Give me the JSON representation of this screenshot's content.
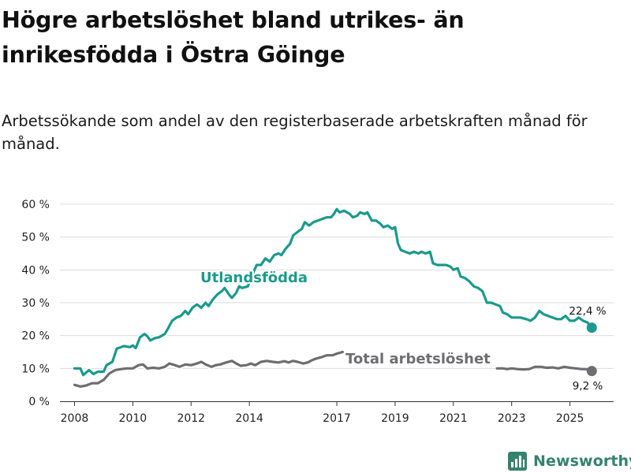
{
  "page": {
    "title": "Högre arbetslöshet bland utrikes- än inrikesfödda i Östra Göinge",
    "subtitle": "Arbetssökande som andel av den registerbaserade arbetskraften månad för månad.",
    "brand": "Newsworthy"
  },
  "colors": {
    "utlandsfodda": "#1a9a8c",
    "total": "#6e6e72",
    "grid": "#dcdcdc",
    "axis": "#333333",
    "brand": "#34826f"
  },
  "chart_data": {
    "type": "line",
    "title": "Högre arbetslöshet bland utrikes- än inrikesfödda i Östra Göinge",
    "subtitle": "Arbetssökande som andel av den registerbaserade arbetskraften månad för månad.",
    "xlabel": "",
    "ylabel": "",
    "xlim": [
      2007.5,
      2026.5
    ],
    "ylim": [
      0,
      60
    ],
    "yticks": [
      0,
      10,
      20,
      30,
      40,
      50,
      60
    ],
    "ytick_labels": [
      "0 %",
      "10 %",
      "20 %",
      "30 %",
      "40 %",
      "50 %",
      "60 %"
    ],
    "xticks": [
      2008,
      2010,
      2012,
      2014,
      2017,
      2019,
      2021,
      2023,
      2025
    ],
    "xtick_labels": [
      "2008",
      "2010",
      "2012",
      "2014",
      "2017",
      "2019",
      "2021",
      "2023",
      "2025"
    ],
    "grid": true,
    "series": [
      {
        "name": "Utlandsfödda",
        "label": "Utlandsfödda",
        "color": "#1a9a8c",
        "end_label": "22,4 %",
        "points": [
          [
            2008.0,
            10.0
          ],
          [
            2008.2,
            10.0
          ],
          [
            2008.3,
            8.0
          ],
          [
            2008.5,
            9.5
          ],
          [
            2008.65,
            8.3
          ],
          [
            2008.8,
            9.0
          ],
          [
            2009.0,
            9.0
          ],
          [
            2009.1,
            11.0
          ],
          [
            2009.3,
            12.0
          ],
          [
            2009.45,
            16.0
          ],
          [
            2009.7,
            16.8
          ],
          [
            2009.9,
            16.5
          ],
          [
            2010.0,
            17.0
          ],
          [
            2010.1,
            16.2
          ],
          [
            2010.25,
            19.5
          ],
          [
            2010.4,
            20.5
          ],
          [
            2010.5,
            19.8
          ],
          [
            2010.6,
            18.5
          ],
          [
            2010.75,
            19.2
          ],
          [
            2010.9,
            19.5
          ],
          [
            2011.1,
            20.5
          ],
          [
            2011.2,
            22.0
          ],
          [
            2011.35,
            24.5
          ],
          [
            2011.5,
            25.5
          ],
          [
            2011.65,
            26.0
          ],
          [
            2011.8,
            27.5
          ],
          [
            2011.9,
            26.5
          ],
          [
            2012.05,
            28.5
          ],
          [
            2012.2,
            29.5
          ],
          [
            2012.35,
            28.5
          ],
          [
            2012.5,
            30.0
          ],
          [
            2012.6,
            29.0
          ],
          [
            2012.75,
            31.0
          ],
          [
            2012.9,
            32.5
          ],
          [
            2013.05,
            33.5
          ],
          [
            2013.15,
            34.5
          ],
          [
            2013.3,
            32.5
          ],
          [
            2013.4,
            31.5
          ],
          [
            2013.55,
            33.0
          ],
          [
            2013.65,
            35.0
          ],
          [
            2013.75,
            34.5
          ],
          [
            2013.95,
            35.0
          ],
          [
            2014.05,
            37.5
          ],
          [
            2014.25,
            41.5
          ],
          [
            2014.4,
            41.5
          ],
          [
            2014.55,
            43.5
          ],
          [
            2014.7,
            42.5
          ],
          [
            2014.85,
            44.5
          ],
          [
            2015.0,
            45.0
          ],
          [
            2015.1,
            44.5
          ],
          [
            2015.25,
            46.5
          ],
          [
            2015.4,
            48.0
          ],
          [
            2015.5,
            50.5
          ],
          [
            2015.65,
            51.5
          ],
          [
            2015.8,
            52.5
          ],
          [
            2015.9,
            54.5
          ],
          [
            2016.05,
            53.5
          ],
          [
            2016.2,
            54.5
          ],
          [
            2016.35,
            55.0
          ],
          [
            2016.5,
            55.5
          ],
          [
            2016.65,
            56.0
          ],
          [
            2016.8,
            56.0
          ],
          [
            2016.9,
            57.0
          ],
          [
            2017.0,
            58.5
          ],
          [
            2017.1,
            57.5
          ],
          [
            2017.25,
            58.0
          ],
          [
            2017.45,
            57.0
          ],
          [
            2017.55,
            56.0
          ],
          [
            2017.7,
            56.5
          ],
          [
            2017.8,
            57.5
          ],
          [
            2017.95,
            57.0
          ],
          [
            2018.05,
            57.5
          ],
          [
            2018.2,
            55.0
          ],
          [
            2018.35,
            55.0
          ],
          [
            2018.5,
            54.0
          ],
          [
            2018.6,
            53.0
          ],
          [
            2018.75,
            53.5
          ],
          [
            2018.9,
            52.5
          ],
          [
            2019.0,
            53.0
          ],
          [
            2019.1,
            48.0
          ],
          [
            2019.2,
            46.0
          ],
          [
            2019.35,
            45.5
          ],
          [
            2019.5,
            45.0
          ],
          [
            2019.65,
            45.5
          ],
          [
            2019.8,
            45.0
          ],
          [
            2019.9,
            45.5
          ],
          [
            2020.05,
            45.0
          ],
          [
            2020.2,
            45.5
          ],
          [
            2020.3,
            42.0
          ],
          [
            2020.45,
            41.5
          ],
          [
            2020.6,
            41.5
          ],
          [
            2020.75,
            41.5
          ],
          [
            2020.9,
            41.0
          ],
          [
            2021.0,
            40.0
          ],
          [
            2021.15,
            40.5
          ],
          [
            2021.25,
            38.0
          ],
          [
            2021.4,
            37.5
          ],
          [
            2021.55,
            36.5
          ],
          [
            2021.7,
            35.0
          ],
          [
            2021.85,
            34.5
          ],
          [
            2022.0,
            33.5
          ],
          [
            2022.15,
            30.0
          ],
          [
            2022.3,
            30.0
          ],
          [
            2022.45,
            29.5
          ],
          [
            2022.6,
            29.0
          ],
          [
            2022.7,
            27.0
          ],
          [
            2022.85,
            26.5
          ],
          [
            2023.0,
            25.5
          ],
          [
            2023.15,
            25.5
          ],
          [
            2023.3,
            25.5
          ],
          [
            2023.5,
            25.0
          ],
          [
            2023.65,
            24.5
          ],
          [
            2023.8,
            25.5
          ],
          [
            2023.95,
            27.5
          ],
          [
            2024.1,
            26.5
          ],
          [
            2024.25,
            26.0
          ],
          [
            2024.4,
            25.5
          ],
          [
            2024.55,
            25.0
          ],
          [
            2024.7,
            25.0
          ],
          [
            2024.85,
            26.0
          ],
          [
            2025.0,
            24.5
          ],
          [
            2025.15,
            24.5
          ],
          [
            2025.3,
            25.5
          ],
          [
            2025.45,
            24.5
          ],
          [
            2025.6,
            24.0
          ],
          [
            2025.75,
            22.4
          ]
        ]
      },
      {
        "name": "Total arbetslöshet",
        "label": "Total arbetslöshet",
        "color": "#6e6e72",
        "end_label": "9,2 %",
        "points": [
          [
            2008.0,
            5.0
          ],
          [
            2008.2,
            4.5
          ],
          [
            2008.4,
            4.8
          ],
          [
            2008.6,
            5.5
          ],
          [
            2008.8,
            5.5
          ],
          [
            2009.0,
            6.5
          ],
          [
            2009.2,
            8.5
          ],
          [
            2009.4,
            9.5
          ],
          [
            2009.6,
            9.8
          ],
          [
            2009.8,
            10.0
          ],
          [
            2010.0,
            10.0
          ],
          [
            2010.2,
            11.0
          ],
          [
            2010.35,
            11.2
          ],
          [
            2010.5,
            10.0
          ],
          [
            2010.7,
            10.2
          ],
          [
            2010.9,
            10.0
          ],
          [
            2011.1,
            10.5
          ],
          [
            2011.25,
            11.5
          ],
          [
            2011.45,
            11.0
          ],
          [
            2011.6,
            10.5
          ],
          [
            2011.8,
            11.2
          ],
          [
            2012.0,
            11.0
          ],
          [
            2012.2,
            11.5
          ],
          [
            2012.35,
            12.0
          ],
          [
            2012.5,
            11.2
          ],
          [
            2012.7,
            10.5
          ],
          [
            2012.85,
            11.0
          ],
          [
            2013.0,
            11.2
          ],
          [
            2013.2,
            11.8
          ],
          [
            2013.4,
            12.3
          ],
          [
            2013.55,
            11.5
          ],
          [
            2013.7,
            10.8
          ],
          [
            2013.9,
            11.0
          ],
          [
            2014.05,
            11.5
          ],
          [
            2014.2,
            11.0
          ],
          [
            2014.4,
            12.0
          ],
          [
            2014.6,
            12.3
          ],
          [
            2014.8,
            12.0
          ],
          [
            2015.0,
            11.8
          ],
          [
            2015.2,
            12.2
          ],
          [
            2015.35,
            11.8
          ],
          [
            2015.5,
            12.3
          ],
          [
            2015.65,
            12.0
          ],
          [
            2015.85,
            11.5
          ],
          [
            2016.0,
            11.8
          ],
          [
            2016.15,
            12.5
          ],
          [
            2016.3,
            13.0
          ],
          [
            2016.5,
            13.5
          ],
          [
            2016.65,
            14.0
          ],
          [
            2016.85,
            14.0
          ],
          [
            2017.0,
            14.5
          ],
          [
            2017.2,
            15.0
          ]
        ],
        "points_late": [
          [
            2022.5,
            10.0
          ],
          [
            2022.7,
            10.0
          ],
          [
            2022.85,
            9.8
          ],
          [
            2023.0,
            10.0
          ],
          [
            2023.2,
            9.8
          ],
          [
            2023.4,
            9.7
          ],
          [
            2023.6,
            9.8
          ],
          [
            2023.8,
            10.5
          ],
          [
            2024.0,
            10.5
          ],
          [
            2024.2,
            10.2
          ],
          [
            2024.4,
            10.3
          ],
          [
            2024.6,
            10.0
          ],
          [
            2024.8,
            10.5
          ],
          [
            2025.0,
            10.2
          ],
          [
            2025.2,
            10.0
          ],
          [
            2025.4,
            9.8
          ],
          [
            2025.55,
            9.8
          ],
          [
            2025.75,
            9.2
          ]
        ]
      }
    ]
  }
}
